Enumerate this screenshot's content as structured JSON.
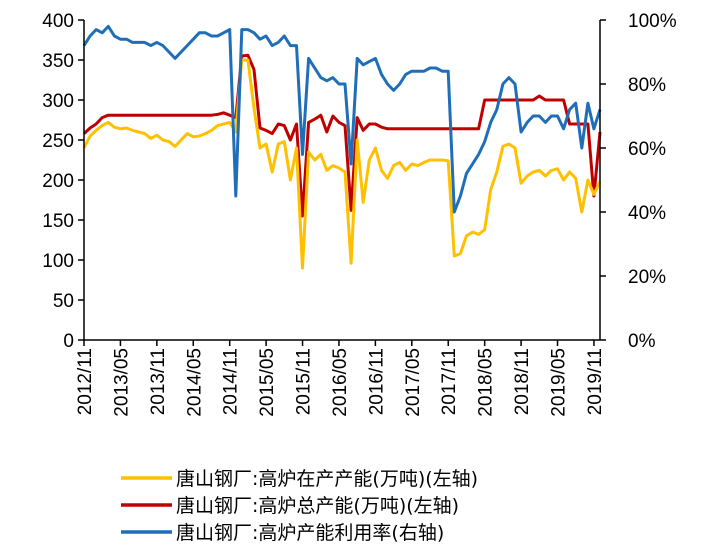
{
  "chart_data": {
    "type": "line",
    "title": "",
    "xlabel": "",
    "ylabel": "",
    "x_start": "2012/11",
    "x_end": "2019/12",
    "x_ticks": [
      "2012/11",
      "2013/05",
      "2013/11",
      "2014/05",
      "2014/11",
      "2015/05",
      "2015/11",
      "2016/05",
      "2016/11",
      "2017/05",
      "2017/11",
      "2018/05",
      "2018/11",
      "2019/05",
      "2019/11"
    ],
    "y_left": {
      "min": 0,
      "max": 400,
      "ticks": [
        0,
        50,
        100,
        150,
        200,
        250,
        300,
        350,
        400
      ]
    },
    "y_right": {
      "min": 0,
      "max": 100,
      "ticks": [
        "0%",
        "20%",
        "40%",
        "60%",
        "80%",
        "100%"
      ]
    },
    "grid": false,
    "legend_position": "bottom",
    "series": [
      {
        "name": "唐山钢厂:高炉在产产能(万吨)(左轴)",
        "axis": "left",
        "color": "#FFC000",
        "x": [
          "2012/11",
          "2012/12",
          "2013/01",
          "2013/02",
          "2013/03",
          "2013/04",
          "2013/05",
          "2013/06",
          "2013/07",
          "2013/08",
          "2013/09",
          "2013/10",
          "2013/11",
          "2013/12",
          "2014/01",
          "2014/02",
          "2014/03",
          "2014/04",
          "2014/05",
          "2014/06",
          "2014/07",
          "2014/08",
          "2014/09",
          "2014/10",
          "2014/11",
          "2014/12",
          "2015/01",
          "2015/02",
          "2015/03",
          "2015/04",
          "2015/05",
          "2015/06",
          "2015/07",
          "2015/08",
          "2015/09",
          "2015/10",
          "2015/11",
          "2015/12",
          "2016/01",
          "2016/02",
          "2016/03",
          "2016/04",
          "2016/05",
          "2016/06",
          "2016/07",
          "2016/08",
          "2016/09",
          "2016/10",
          "2016/11",
          "2016/12",
          "2017/01",
          "2017/02",
          "2017/03",
          "2017/04",
          "2017/05",
          "2017/06",
          "2017/07",
          "2017/08",
          "2017/09",
          "2017/10",
          "2017/11",
          "2017/12",
          "2018/01",
          "2018/02",
          "2018/03",
          "2018/04",
          "2018/05",
          "2018/06",
          "2018/07",
          "2018/08",
          "2018/09",
          "2018/10",
          "2018/11",
          "2018/12",
          "2019/01",
          "2019/02",
          "2019/03",
          "2019/04",
          "2019/05",
          "2019/06",
          "2019/07",
          "2019/08",
          "2019/09",
          "2019/10",
          "2019/11",
          "2019/12"
        ],
        "values": [
          240,
          255,
          262,
          268,
          272,
          266,
          264,
          265,
          262,
          260,
          258,
          252,
          256,
          250,
          248,
          242,
          250,
          258,
          254,
          255,
          258,
          262,
          268,
          270,
          272,
          260,
          350,
          350,
          290,
          240,
          245,
          210,
          245,
          248,
          200,
          240,
          90,
          235,
          225,
          232,
          212,
          218,
          215,
          210,
          96,
          250,
          172,
          225,
          240,
          212,
          202,
          218,
          222,
          212,
          220,
          218,
          222,
          225,
          225,
          225,
          224,
          105,
          108,
          130,
          135,
          132,
          138,
          188,
          210,
          242,
          245,
          240,
          196,
          205,
          210,
          212,
          205,
          212,
          214,
          200,
          210,
          202,
          160,
          200,
          182,
          198
        ]
      },
      {
        "name": "唐山钢厂:高炉总产能(万吨)(左轴)",
        "axis": "left",
        "color": "#C00000",
        "x": [
          "2012/11",
          "2012/12",
          "2013/01",
          "2013/02",
          "2013/03",
          "2013/04",
          "2013/05",
          "2013/06",
          "2013/07",
          "2013/08",
          "2013/09",
          "2013/10",
          "2013/11",
          "2013/12",
          "2014/01",
          "2014/02",
          "2014/03",
          "2014/04",
          "2014/05",
          "2014/06",
          "2014/07",
          "2014/08",
          "2014/09",
          "2014/10",
          "2014/11",
          "2014/12",
          "2015/01",
          "2015/02",
          "2015/03",
          "2015/04",
          "2015/05",
          "2015/06",
          "2015/07",
          "2015/08",
          "2015/09",
          "2015/10",
          "2015/11",
          "2015/12",
          "2016/01",
          "2016/02",
          "2016/03",
          "2016/04",
          "2016/05",
          "2016/06",
          "2016/07",
          "2016/08",
          "2016/09",
          "2016/10",
          "2016/11",
          "2016/12",
          "2017/01",
          "2017/02",
          "2017/03",
          "2017/04",
          "2017/05",
          "2017/06",
          "2017/07",
          "2017/08",
          "2017/09",
          "2017/10",
          "2017/11",
          "2017/12",
          "2018/01",
          "2018/02",
          "2018/03",
          "2018/04",
          "2018/05",
          "2018/06",
          "2018/07",
          "2018/08",
          "2018/09",
          "2018/10",
          "2018/11",
          "2018/12",
          "2019/01",
          "2019/02",
          "2019/03",
          "2019/04",
          "2019/05",
          "2019/06",
          "2019/07",
          "2019/08",
          "2019/09",
          "2019/10",
          "2019/11",
          "2019/12"
        ],
        "values": [
          258,
          265,
          270,
          278,
          281,
          281,
          281,
          281,
          281,
          281,
          281,
          281,
          281,
          281,
          281,
          281,
          281,
          281,
          281,
          281,
          281,
          281,
          282,
          284,
          281,
          278,
          355,
          356,
          338,
          265,
          262,
          258,
          270,
          268,
          250,
          270,
          155,
          272,
          276,
          281,
          260,
          280,
          272,
          268,
          162,
          278,
          262,
          270,
          270,
          266,
          264,
          264,
          264,
          264,
          264,
          264,
          264,
          264,
          264,
          264,
          264,
          264,
          264,
          264,
          264,
          264,
          300,
          300,
          300,
          300,
          300,
          300,
          300,
          300,
          300,
          305,
          300,
          300,
          300,
          300,
          270,
          270,
          270,
          270,
          180,
          260
        ]
      },
      {
        "name": "唐山钢厂:高炉产能利用率(右轴)",
        "axis": "right",
        "color": "#1F6EB7",
        "x": [
          "2012/11",
          "2012/12",
          "2013/01",
          "2013/02",
          "2013/03",
          "2013/04",
          "2013/05",
          "2013/06",
          "2013/07",
          "2013/08",
          "2013/09",
          "2013/10",
          "2013/11",
          "2013/12",
          "2014/01",
          "2014/02",
          "2014/03",
          "2014/04",
          "2014/05",
          "2014/06",
          "2014/07",
          "2014/08",
          "2014/09",
          "2014/10",
          "2014/11",
          "2014/12",
          "2015/01",
          "2015/02",
          "2015/03",
          "2015/04",
          "2015/05",
          "2015/06",
          "2015/07",
          "2015/08",
          "2015/09",
          "2015/10",
          "2015/11",
          "2015/12",
          "2016/01",
          "2016/02",
          "2016/03",
          "2016/04",
          "2016/05",
          "2016/06",
          "2016/07",
          "2016/08",
          "2016/09",
          "2016/10",
          "2016/11",
          "2016/12",
          "2017/01",
          "2017/02",
          "2017/03",
          "2017/04",
          "2017/05",
          "2017/06",
          "2017/07",
          "2017/08",
          "2017/09",
          "2017/10",
          "2017/11",
          "2017/12",
          "2018/01",
          "2018/02",
          "2018/03",
          "2018/04",
          "2018/05",
          "2018/06",
          "2018/07",
          "2018/08",
          "2018/09",
          "2018/10",
          "2018/11",
          "2018/12",
          "2019/01",
          "2019/02",
          "2019/03",
          "2019/04",
          "2019/05",
          "2019/06",
          "2019/07",
          "2019/08",
          "2019/09",
          "2019/10",
          "2019/11",
          "2019/12"
        ],
        "values": [
          92,
          95,
          97,
          96,
          98,
          95,
          94,
          94,
          93,
          93,
          93,
          92,
          93,
          92,
          90,
          88,
          90,
          92,
          94,
          96,
          96,
          95,
          95,
          96,
          97,
          45,
          97,
          97,
          96,
          94,
          95,
          92,
          93,
          95,
          92,
          92,
          58,
          88,
          85,
          82,
          81,
          82,
          80,
          80,
          55,
          88,
          86,
          87,
          88,
          83,
          80,
          78,
          80,
          83,
          84,
          84,
          84,
          85,
          85,
          84,
          84,
          40,
          45,
          52,
          55,
          58,
          62,
          68,
          72,
          80,
          82,
          80,
          65,
          68,
          70,
          70,
          68,
          70,
          70,
          66,
          72,
          74,
          60,
          74,
          66,
          72
        ]
      }
    ]
  }
}
